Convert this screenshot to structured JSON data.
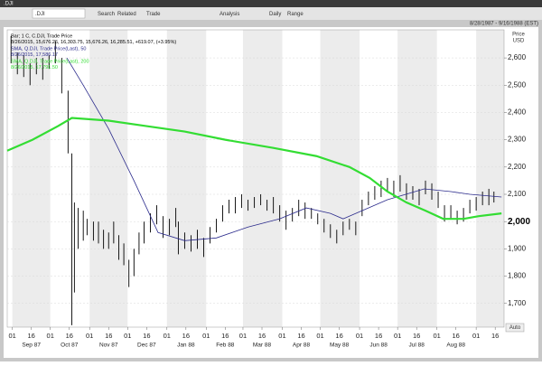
{
  "window_title": ".DJI",
  "toolbar": {
    "ric": ".DJI",
    "items": [
      "Search",
      "Related",
      "Trade",
      "Analysis",
      "Daily",
      "Range"
    ],
    "date_range": "8/28/1987 - 9/16/1988 (EST)"
  },
  "chart_data": {
    "type": "stock",
    "y_axis_label": [
      "Price",
      "USD"
    ],
    "auto_label": "Auto",
    "xlim": [
      0,
      392
    ],
    "xticks": [
      {
        "value": 4,
        "label": "01"
      },
      {
        "value": 19,
        "label": "16"
      },
      {
        "value": 34,
        "label": "01"
      },
      {
        "value": 49,
        "label": "16"
      },
      {
        "value": 65,
        "label": "01"
      },
      {
        "value": 80,
        "label": "16"
      },
      {
        "value": 95,
        "label": "01"
      },
      {
        "value": 110,
        "label": "16"
      },
      {
        "value": 126,
        "label": "01"
      },
      {
        "value": 141,
        "label": "16"
      },
      {
        "value": 157,
        "label": "01"
      },
      {
        "value": 172,
        "label": "16"
      },
      {
        "value": 186,
        "label": "01"
      },
      {
        "value": 201,
        "label": "16"
      },
      {
        "value": 217,
        "label": "01"
      },
      {
        "value": 232,
        "label": "16"
      },
      {
        "value": 247,
        "label": "01"
      },
      {
        "value": 262,
        "label": "16"
      },
      {
        "value": 278,
        "label": "01"
      },
      {
        "value": 293,
        "label": "16"
      },
      {
        "value": 308,
        "label": "01"
      },
      {
        "value": 323,
        "label": "16"
      },
      {
        "value": 339,
        "label": "01"
      },
      {
        "value": 354,
        "label": "16"
      },
      {
        "value": 370,
        "label": "01"
      },
      {
        "value": 385,
        "label": "16"
      }
    ],
    "month_labels": [
      "Sep 87",
      "Oct 87",
      "Nov 87",
      "Dec 87",
      "Jan 88",
      "Feb 88",
      "Mar 88",
      "Apr 88",
      "May 88",
      "Jun 88",
      "Jul 88",
      "Aug 88"
    ],
    "ylim": [
      1613,
      2703
    ],
    "yticks": [
      {
        "value": 1700,
        "label": "1,700"
      },
      {
        "value": 1800,
        "label": "1,800"
      },
      {
        "value": 1900,
        "label": "1,900"
      },
      {
        "value": 2000,
        "label": "2,000"
      },
      {
        "value": 2100,
        "label": "2,100"
      },
      {
        "value": 2200,
        "label": "2,200"
      },
      {
        "value": 2300,
        "label": "2,300"
      },
      {
        "value": 2400,
        "label": "2,400"
      },
      {
        "value": 2500,
        "label": "2,500"
      },
      {
        "value": 2600,
        "label": "2,600"
      }
    ],
    "highlight_tick": 2000,
    "month_shading": true,
    "series": [
      {
        "name": "Bar; 1 C, C.DJI, Trade Price",
        "detail": "8/26/2015, 15,676.26, 16,303.75, 15,676.26, 16,285.51, +619.07, (+3.95%)",
        "color": "#000000",
        "x": [
          3,
          8,
          13,
          18,
          23,
          28,
          33,
          38,
          43,
          48,
          51,
          53,
          56,
          60,
          63,
          68,
          72,
          76,
          80,
          84,
          88,
          92,
          96,
          100,
          104,
          108,
          113,
          118,
          123,
          128,
          133,
          135,
          140,
          145,
          150,
          155,
          160,
          165,
          170,
          175,
          180,
          185,
          190,
          195,
          200,
          205,
          210,
          215,
          220,
          225,
          230,
          235,
          240,
          245,
          250,
          255,
          260,
          265,
          270,
          275,
          280,
          285,
          290,
          295,
          300,
          305,
          310,
          315,
          320,
          325,
          330,
          335,
          340,
          345,
          350,
          355,
          360,
          365,
          370,
          375,
          380,
          384
        ],
        "high": [
          2680,
          2620,
          2610,
          2580,
          2600,
          2600,
          2610,
          2660,
          2600,
          2480,
          2250,
          2070,
          2050,
          2040,
          2010,
          2000,
          2000,
          1970,
          1960,
          2000,
          1950,
          1920,
          1860,
          1900,
          1960,
          2000,
          2030,
          2060,
          2020,
          2010,
          2050,
          2000,
          1960,
          1950,
          1970,
          1940,
          1980,
          2010,
          2060,
          2080,
          2090,
          2100,
          2080,
          2090,
          2100,
          2080,
          2090,
          2060,
          2040,
          2050,
          2080,
          2070,
          2050,
          2030,
          2010,
          1990,
          1970,
          2000,
          2010,
          2000,
          2080,
          2110,
          2130,
          2150,
          2160,
          2150,
          2170,
          2140,
          2130,
          2120,
          2150,
          2140,
          2110,
          2060,
          2060,
          2040,
          2050,
          2080,
          2090,
          2110,
          2120,
          2110
        ],
        "low": [
          2580,
          2540,
          2530,
          2500,
          2540,
          2520,
          2560,
          2580,
          2470,
          2250,
          1620,
          1740,
          1900,
          1930,
          1950,
          1930,
          1920,
          1900,
          1900,
          1920,
          1860,
          1840,
          1760,
          1800,
          1880,
          1920,
          1960,
          1990,
          1940,
          1950,
          1980,
          1880,
          1900,
          1890,
          1900,
          1870,
          1920,
          1960,
          2000,
          2030,
          2030,
          2050,
          2040,
          2050,
          2060,
          2040,
          2030,
          2000,
          1970,
          2000,
          2020,
          2010,
          2010,
          1990,
          1960,
          1940,
          1920,
          1950,
          1970,
          1950,
          2020,
          2060,
          2080,
          2090,
          2110,
          2090,
          2110,
          2080,
          2080,
          2060,
          2100,
          2080,
          2050,
          2000,
          2010,
          1990,
          2000,
          2030,
          2040,
          2060,
          2060,
          2070
        ]
      },
      {
        "name": "SMA, Q.DJI, Trade Price(Last), 50",
        "detail": "8/26/2015, 17,586.17",
        "color": "#2b2b8c",
        "x": [
          47,
          60,
          80,
          100,
          119,
          140,
          165,
          190,
          215,
          236,
          255,
          265,
          280,
          300,
          329,
          350,
          365,
          390
        ],
        "values": [
          2600,
          2500,
          2340,
          2150,
          1960,
          1930,
          1940,
          1980,
          2010,
          2050,
          2030,
          2010,
          2040,
          2080,
          2120,
          2110,
          2100,
          2090
        ]
      },
      {
        "name": "SMA, Q.DJI, Trade Price(Last), 200",
        "detail": "8/26/2015, 17,791.50",
        "color": "#33dd33",
        "x": [
          0,
          20,
          40,
          51,
          80,
          110,
          140,
          172,
          210,
          244,
          270,
          286,
          300,
          315,
          330,
          344,
          360,
          372,
          390
        ],
        "values": [
          2260,
          2300,
          2350,
          2380,
          2370,
          2350,
          2330,
          2300,
          2270,
          2240,
          2200,
          2160,
          2110,
          2070,
          2040,
          2010,
          2010,
          2020,
          2030
        ]
      }
    ]
  }
}
